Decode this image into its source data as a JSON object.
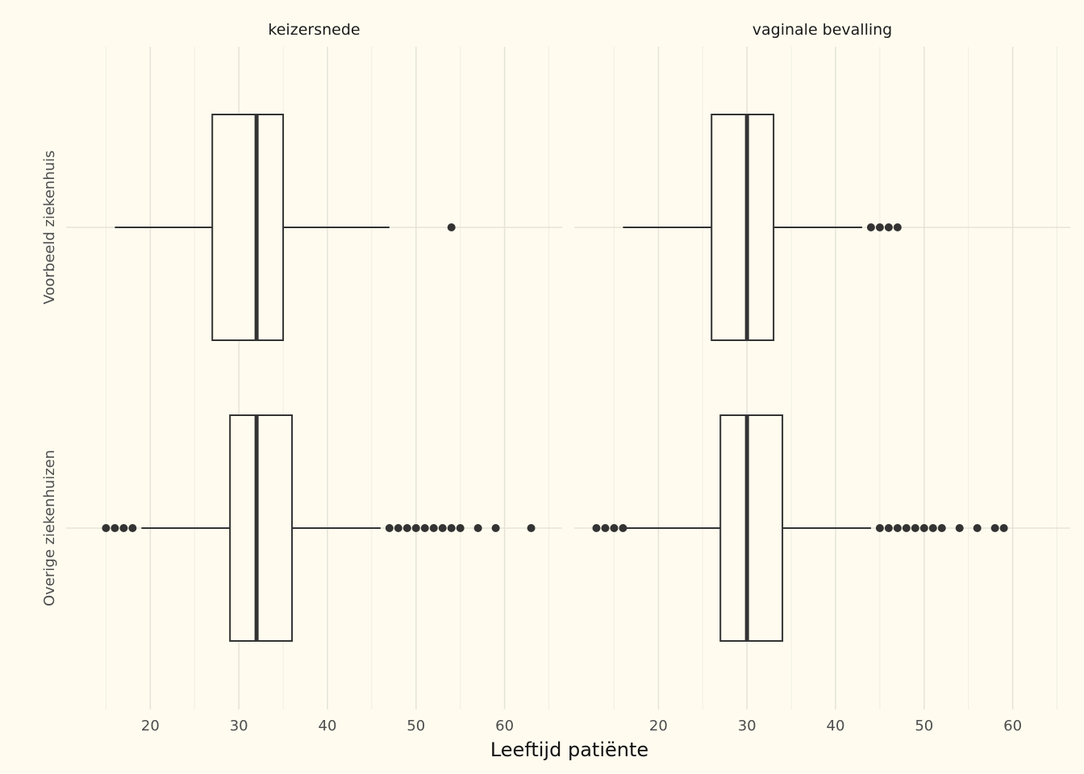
{
  "chart_data": {
    "type": "boxplot",
    "xlabel": "Leeftijd patiënte",
    "ylabel": "",
    "xlim": [
      10.5,
      66.5
    ],
    "x_ticks": [
      20,
      30,
      40,
      50,
      60
    ],
    "categories": [
      "Voorbeeld ziekenhuis",
      "Overige ziekenhuizen"
    ],
    "facets": [
      {
        "title": "keizersnede",
        "boxes": [
          {
            "category": "Voorbeeld ziekenhuis",
            "whisker_low": 16,
            "q1": 27,
            "median": 32,
            "q3": 35,
            "whisker_high": 47,
            "outliers": [
              54
            ]
          },
          {
            "category": "Overige ziekenhuizen",
            "whisker_low": 19,
            "q1": 29,
            "median": 32,
            "q3": 36,
            "whisker_high": 46,
            "outliers": [
              15,
              16,
              17,
              18,
              47,
              48,
              49,
              50,
              51,
              52,
              53,
              54,
              55,
              57,
              59,
              63
            ]
          }
        ]
      },
      {
        "title": "vaginale bevalling",
        "boxes": [
          {
            "category": "Voorbeeld ziekenhuis",
            "whisker_low": 16,
            "q1": 26,
            "median": 30,
            "q3": 33,
            "whisker_high": 43,
            "outliers": [
              44,
              45,
              46,
              47
            ]
          },
          {
            "category": "Overige ziekenhuizen",
            "whisker_low": 16,
            "q1": 27,
            "median": 30,
            "q3": 34,
            "whisker_high": 44,
            "outliers": [
              13,
              14,
              15,
              16,
              45,
              46,
              47,
              48,
              49,
              50,
              51,
              52,
              54,
              56,
              58,
              59
            ]
          }
        ]
      }
    ],
    "grid": true,
    "legend": "none"
  }
}
